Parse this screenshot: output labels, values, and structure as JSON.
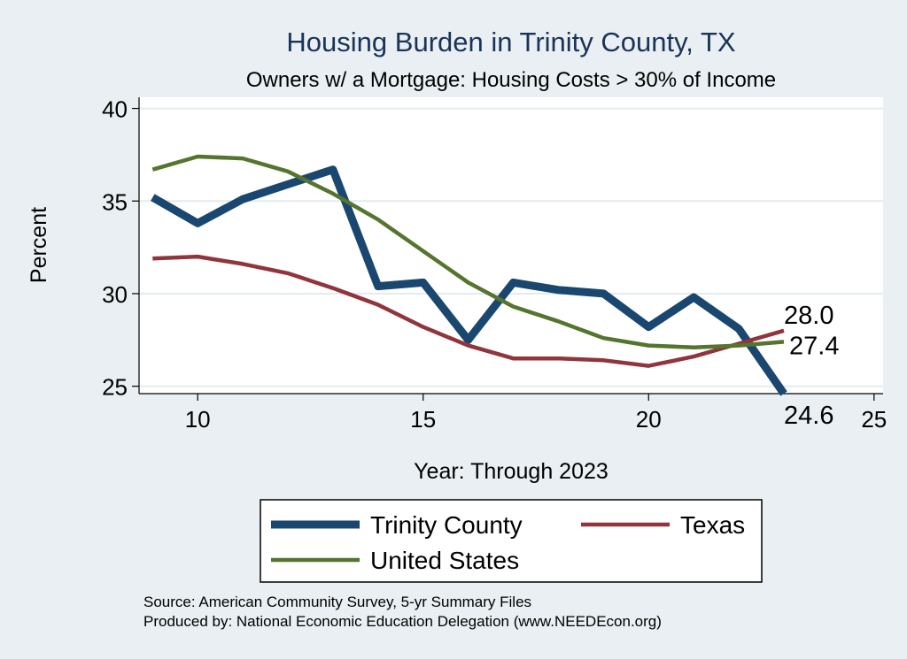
{
  "chart_data": {
    "type": "line",
    "title": "Housing Burden in Trinity County, TX",
    "subtitle": "Owners w/ a Mortgage: Housing Costs > 30% of Income",
    "xlabel": "Year: Through 2023",
    "ylabel": "Percent",
    "xlim": [
      8.7,
      25.2
    ],
    "ylim": [
      24.6,
      40.6
    ],
    "xticks": [
      10,
      15,
      20,
      25
    ],
    "yticks": [
      25,
      30,
      35,
      40
    ],
    "grid": true,
    "legend_position": "bottom",
    "x": [
      9,
      10,
      11,
      12,
      13,
      14,
      15,
      16,
      17,
      18,
      19,
      20,
      21,
      22,
      23
    ],
    "series": [
      {
        "name": "Trinity County",
        "color": "#1a476f",
        "width": "thick",
        "values": [
          35.2,
          33.8,
          35.1,
          35.9,
          36.7,
          30.4,
          30.6,
          27.5,
          30.6,
          30.2,
          30.0,
          28.2,
          29.8,
          28.1,
          24.6
        ],
        "end_label": "24.6"
      },
      {
        "name": "Texas",
        "color": "#90353b",
        "width": "medium",
        "values": [
          31.9,
          32.0,
          31.6,
          31.1,
          30.3,
          29.4,
          28.2,
          27.2,
          26.5,
          26.5,
          26.4,
          26.1,
          26.6,
          27.3,
          28.0
        ],
        "end_label": "28.0"
      },
      {
        "name": "United States",
        "color": "#55752f",
        "width": "medium",
        "values": [
          36.7,
          37.4,
          37.3,
          36.6,
          35.4,
          34.0,
          32.3,
          30.6,
          29.3,
          28.5,
          27.6,
          27.2,
          27.1,
          27.2,
          27.4
        ],
        "end_label": "27.4"
      }
    ]
  },
  "footer": {
    "source": "Source: American Community Survey, 5-yr Summary Files",
    "produced_by": "Produced by: National Economic Education Delegation (www.NEEDEcon.org)"
  }
}
